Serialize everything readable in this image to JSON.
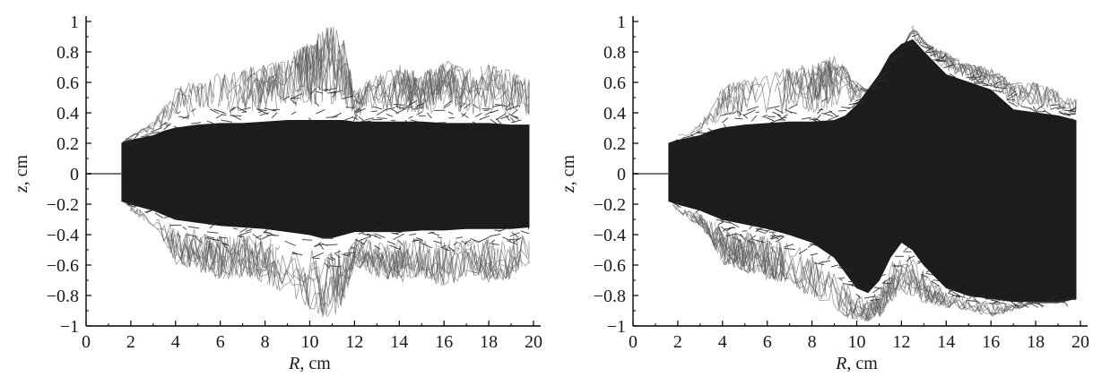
{
  "chart_data": [
    {
      "type": "line",
      "xlabel": "R, cm",
      "ylabel": "z, cm",
      "xlim": [
        0,
        20
      ],
      "ylim": [
        -1,
        1
      ],
      "xticks": [
        "0",
        "2",
        "4",
        "6",
        "8",
        "10",
        "12",
        "14",
        "16",
        "18",
        "20"
      ],
      "yticks": [
        "1",
        "0.8",
        "0.6",
        "0.4",
        "0.2",
        "0",
        "−0.2",
        "−0.4",
        "−0.6",
        "−0.8",
        "−1"
      ],
      "grid": false,
      "series": [
        {
          "values": {
            "R": [
              0,
              1.5,
              1.6,
              2,
              3,
              3.5,
              4,
              5,
              6,
              7,
              8,
              9,
              10,
              10.5,
              11,
              11.5,
              12,
              13,
              14,
              15,
              16,
              17,
              18,
              19,
              19.8
            ],
            "z_upper": [
              0,
              0,
              0.22,
              0.25,
              0.35,
              0.45,
              0.58,
              0.62,
              0.66,
              0.7,
              0.72,
              0.78,
              0.88,
              0.95,
              0.98,
              0.9,
              0.55,
              0.65,
              0.72,
              0.66,
              0.75,
              0.68,
              0.72,
              0.68,
              0.62
            ],
            "z_lower": [
              0,
              0,
              -0.18,
              -0.25,
              -0.35,
              -0.45,
              -0.6,
              -0.65,
              -0.7,
              -0.68,
              -0.72,
              -0.8,
              -0.9,
              -0.95,
              -0.97,
              -0.85,
              -0.6,
              -0.68,
              -0.72,
              -0.68,
              -0.75,
              -0.68,
              -0.72,
              -0.7,
              -0.6
            ],
            "core_upper": [
              0,
              0,
              0.2,
              0.22,
              0.25,
              0.28,
              0.3,
              0.32,
              0.33,
              0.33,
              0.34,
              0.35,
              0.35,
              0.35,
              0.35,
              0.35,
              0.34,
              0.34,
              0.34,
              0.34,
              0.33,
              0.33,
              0.33,
              0.32,
              0.32
            ],
            "core_lower": [
              0,
              0,
              -0.18,
              -0.2,
              -0.24,
              -0.27,
              -0.3,
              -0.32,
              -0.34,
              -0.35,
              -0.36,
              -0.38,
              -0.4,
              -0.42,
              -0.42,
              -0.4,
              -0.38,
              -0.38,
              -0.38,
              -0.37,
              -0.37,
              -0.36,
              -0.36,
              -0.36,
              -0.35
            ]
          }
        }
      ]
    },
    {
      "type": "line",
      "xlabel": "R, cm",
      "ylabel": "z, cm",
      "xlim": [
        0,
        20
      ],
      "ylim": [
        -1,
        1
      ],
      "xticks": [
        "0",
        "2",
        "4",
        "6",
        "8",
        "10",
        "12",
        "14",
        "16",
        "18",
        "20"
      ],
      "yticks": [
        "1",
        "0.8",
        "0.6",
        "0.4",
        "0.2",
        "0",
        "−0.2",
        "−0.4",
        "−0.6",
        "−0.8",
        "−1"
      ],
      "grid": false,
      "series": [
        {
          "values": {
            "R": [
              0,
              1.5,
              1.6,
              2,
              3,
              3.5,
              4,
              5,
              6,
              7,
              8,
              9,
              9.5,
              10,
              10.5,
              11,
              11.5,
              12,
              12.5,
              13,
              14,
              15,
              16,
              17,
              18,
              19,
              19.8
            ],
            "z_upper": [
              0,
              0,
              0.22,
              0.25,
              0.35,
              0.45,
              0.58,
              0.62,
              0.66,
              0.7,
              0.72,
              0.78,
              0.7,
              0.6,
              0.55,
              0.55,
              0.62,
              0.8,
              0.98,
              0.88,
              0.8,
              0.72,
              0.7,
              0.6,
              0.6,
              0.55,
              0.5
            ],
            "z_lower": [
              0,
              0,
              -0.18,
              -0.25,
              -0.35,
              -0.45,
              -0.6,
              -0.65,
              -0.7,
              -0.72,
              -0.82,
              -0.88,
              -0.95,
              -0.97,
              -0.97,
              -0.95,
              -0.85,
              -0.8,
              -0.8,
              -0.85,
              -0.88,
              -0.9,
              -0.95,
              -0.9,
              -0.85,
              -0.85,
              -0.82
            ],
            "core_upper": [
              0,
              0,
              0.2,
              0.22,
              0.25,
              0.28,
              0.3,
              0.32,
              0.33,
              0.34,
              0.34,
              0.35,
              0.38,
              0.45,
              0.55,
              0.65,
              0.78,
              0.85,
              0.88,
              0.8,
              0.65,
              0.6,
              0.55,
              0.42,
              0.4,
              0.38,
              0.35
            ],
            "core_lower": [
              0,
              0,
              -0.18,
              -0.2,
              -0.24,
              -0.27,
              -0.3,
              -0.33,
              -0.36,
              -0.4,
              -0.45,
              -0.55,
              -0.65,
              -0.75,
              -0.78,
              -0.7,
              -0.55,
              -0.45,
              -0.5,
              -0.6,
              -0.75,
              -0.8,
              -0.82,
              -0.84,
              -0.84,
              -0.84,
              -0.82
            ]
          }
        }
      ]
    }
  ]
}
